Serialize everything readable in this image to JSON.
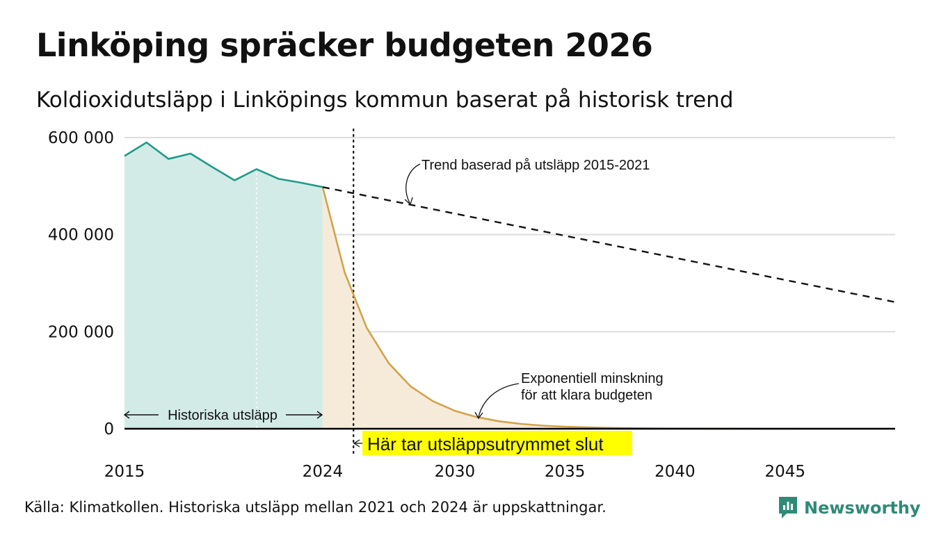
{
  "header": {
    "title": "Linköping spräcker budgeten 2026",
    "subtitle": "Koldioxidutsläpp i Linköpings kommun baserat på historisk trend"
  },
  "footer": {
    "source": "Källa: Klimatkollen. Historiska utsläpp mellan 2021 och 2024 är uppskattningar.",
    "brand": "Newsworthy"
  },
  "colors": {
    "historical_line": "#1f9a8a",
    "historical_fill": "#d3ebe7",
    "reduction_line": "#d3a24c",
    "reduction_fill": "#f6ebd9",
    "trend_line": "#111111",
    "highlight": "#ffff00",
    "grid": "#dddddd",
    "brand": "#2f8a78"
  },
  "chart_data": {
    "type": "area",
    "xlim": [
      2015,
      2050
    ],
    "ylim": [
      0,
      600000
    ],
    "yticks": [
      0,
      200000,
      400000,
      600000
    ],
    "ytick_labels": [
      "0",
      "200 000",
      "400 000",
      "600 000"
    ],
    "xticks": [
      2015,
      2024,
      2030,
      2035,
      2040,
      2045
    ],
    "xtick_labels": [
      "2015",
      "2024",
      "2030",
      "2035",
      "2040",
      "2045"
    ],
    "grid": true,
    "series": [
      {
        "name": "Historiska utsläpp",
        "x": [
          2015,
          2016,
          2017,
          2018,
          2019,
          2020,
          2021,
          2022,
          2023,
          2024
        ],
        "values": [
          562000,
          590000,
          556000,
          567000,
          539000,
          512000,
          535000,
          515000,
          507000,
          498000
        ]
      },
      {
        "name": "Exponentiell minskning för att klara budgeten",
        "x": [
          2024,
          2025,
          2026,
          2027,
          2028,
          2029,
          2030,
          2031,
          2032,
          2033,
          2034,
          2035,
          2036,
          2037,
          2038,
          2039,
          2040,
          2042,
          2044,
          2046,
          2048,
          2050
        ],
        "values": [
          498000,
          322000,
          208000,
          135000,
          87000,
          57000,
          37000,
          24000,
          15500,
          10000,
          6500,
          4200,
          2700,
          1800,
          1200,
          750,
          500,
          220,
          90,
          40,
          17,
          7
        ]
      },
      {
        "name": "Trend baserad på utsläpp 2015-2021",
        "x": [
          2024,
          2050
        ],
        "values": [
          498000,
          261000
        ]
      }
    ],
    "markers": {
      "historical_divider_x": 2021,
      "budget_end_x": 2025.4,
      "budget_end_label": "Här tar utsläppsutrymmet slut"
    },
    "annotations": {
      "historical_label": "Historiska utsläpp",
      "trend_label": "Trend baserad på utsläpp 2015-2021",
      "exp_label_line1": "Exponentiell minskning",
      "exp_label_line2": "för att klara budgeten"
    }
  }
}
